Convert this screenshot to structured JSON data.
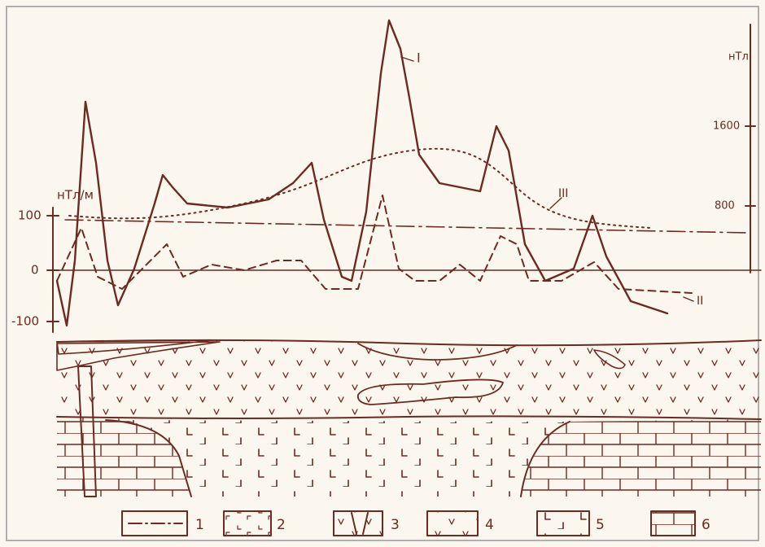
{
  "axes": {
    "left_unit": "нТл/м",
    "left_ticks": [
      100,
      0,
      -100
    ],
    "right_unit": "нТл",
    "right_ticks": [
      1600,
      800
    ]
  },
  "curve_labels": [
    "I",
    "II",
    "III"
  ],
  "legend": [
    "1",
    "2",
    "3",
    "4",
    "5",
    "6"
  ]
}
